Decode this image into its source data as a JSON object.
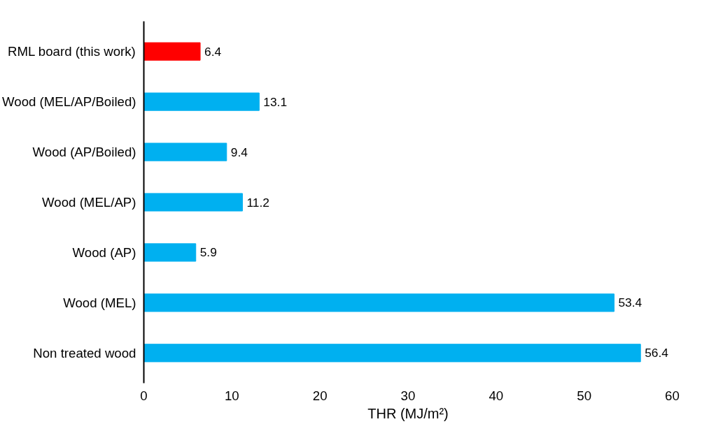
{
  "chart_data": {
    "type": "bar",
    "orientation": "horizontal",
    "xlabel": "THR (MJ/m²)",
    "categories": [
      "RML board (this work)",
      "Wood (MEL/AP/Boiled)",
      "Wood (AP/Boiled)",
      "Wood (MEL/AP)",
      "Wood (AP)",
      "Wood (MEL)",
      "Non treated wood"
    ],
    "values": [
      6.4,
      13.1,
      9.4,
      11.2,
      5.9,
      53.4,
      56.4
    ],
    "colors": [
      "#ff0000",
      "#00b0f0",
      "#00b0f0",
      "#00b0f0",
      "#00b0f0",
      "#00b0f0",
      "#00b0f0"
    ],
    "xlim": [
      0,
      60
    ],
    "xticks": [
      0,
      10,
      20,
      30,
      40,
      50,
      60
    ],
    "data_labels": true,
    "grid": false
  }
}
